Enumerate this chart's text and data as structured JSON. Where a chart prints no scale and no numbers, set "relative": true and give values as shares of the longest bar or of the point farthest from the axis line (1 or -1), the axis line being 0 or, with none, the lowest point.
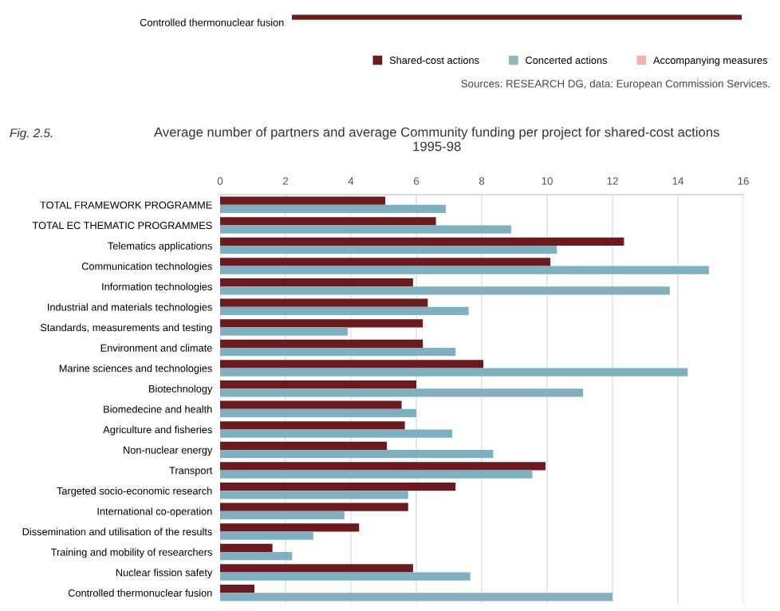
{
  "chart_data": [
    {
      "type": "bar",
      "orientation": "horizontal",
      "relative": true,
      "categories": [
        "Controlled thermonuclear fusion"
      ],
      "legend": "bottom",
      "annotations": [
        "Sources: RESEARCH DG, data: European Commission Services."
      ],
      "series": [
        {
          "name": "Shared-cost actions",
          "color": "#6b1a1f",
          "values": [
            1
          ]
        },
        {
          "name": "Concerted actions",
          "color": "#8fb8bd",
          "values": [
            null
          ]
        },
        {
          "name": "Accompanying measures",
          "color": "#f0b4ae",
          "values": [
            null
          ]
        }
      ]
    },
    {
      "type": "bar",
      "orientation": "horizontal",
      "title": "Average number of partners and average Community funding per project for shared-cost actions\n1995-98",
      "annotations": [
        "Fig. 2.5."
      ],
      "xlim": [
        0,
        16
      ],
      "xticks": [
        0,
        2,
        4,
        6,
        8,
        10,
        12,
        14,
        16
      ],
      "grid": "x",
      "categories": [
        "TOTAL FRAMEWORK PROGRAMME",
        "TOTAL EC THEMATIC PROGRAMMES",
        "Telematics applications",
        "Communication technologies",
        "Information technologies",
        "Industrial and materials technologies",
        "Standards, measurements and testing",
        "Environment and climate",
        "Marine sciences and technologies",
        "Biotechnology",
        "Biomedecine and health",
        "Agriculture and fisheries",
        "Non-nuclear energy",
        "Transport",
        "Targeted socio-economic research",
        "International co-operation",
        "Dissemination and utilisation of the results",
        "Training and mobility of researchers",
        "Nuclear fission safety",
        "Controlled thermonuclear fusion"
      ],
      "series": [
        {
          "color": "#6b1a1f",
          "values": [
            5.05,
            6.6,
            12.35,
            10.1,
            5.9,
            6.35,
            6.2,
            6.2,
            8.05,
            6.0,
            5.55,
            5.65,
            5.1,
            9.95,
            7.2,
            5.75,
            4.25,
            1.6,
            5.9,
            1.05
          ]
        },
        {
          "color": "#7fb0bf",
          "values": [
            6.9,
            8.9,
            10.3,
            14.95,
            13.75,
            7.6,
            3.9,
            7.2,
            14.3,
            11.1,
            6.0,
            7.1,
            8.35,
            9.55,
            5.75,
            3.8,
            2.85,
            2.2,
            7.65,
            12.0
          ]
        }
      ]
    }
  ]
}
